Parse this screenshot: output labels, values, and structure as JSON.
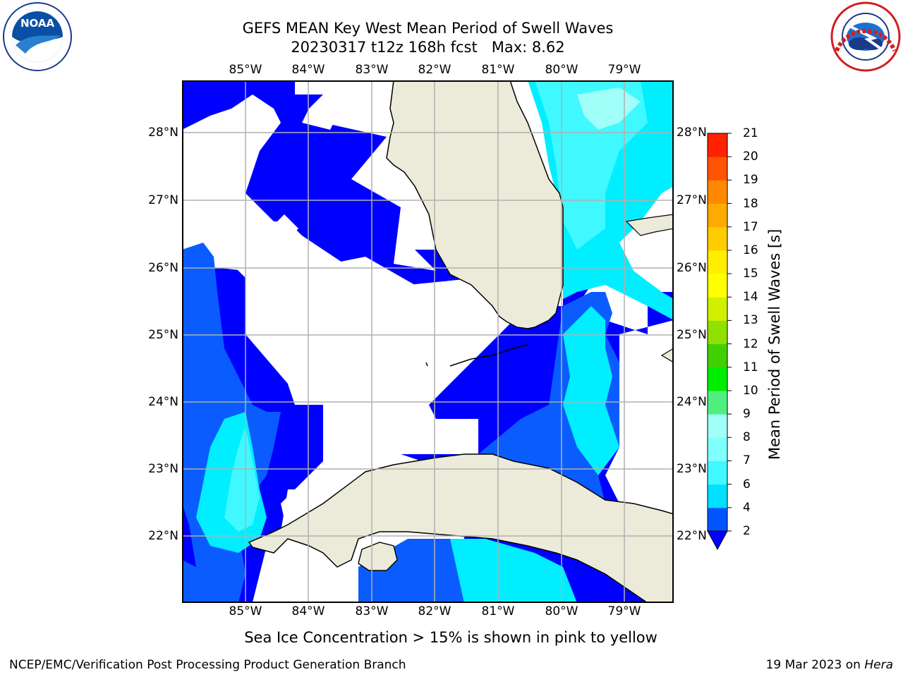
{
  "header": {
    "title_line1": "GEFS MEAN Key West Mean Period of Swell Waves",
    "title_line2": "20230317 t12z 168h fcst   Max: 8.62"
  },
  "logos": {
    "left_text": "NOAA",
    "left_ring_text": "NATIONAL OCEANIC AND ATMOSPHERIC ADMINISTRATION · U.S. DEPARTMENT OF COMMERCE",
    "right_ring_text": "NATIONAL WEATHER SERVICE"
  },
  "map": {
    "lon_labels": [
      "85°W",
      "84°W",
      "83°W",
      "82°W",
      "81°W",
      "80°W",
      "79°W"
    ],
    "lat_labels": [
      "28°N",
      "27°N",
      "26°N",
      "25°N",
      "24°N",
      "23°N",
      "22°N"
    ],
    "grid": true,
    "note": "Sea Ice Concentration > 15% is shown in pink to yellow"
  },
  "colorbar": {
    "title": "Mean Period of Swell Waves [s]",
    "levels": [
      "2",
      "4",
      "6",
      "7",
      "8",
      "9",
      "10",
      "11",
      "12",
      "13",
      "14",
      "15",
      "16",
      "17",
      "18",
      "19",
      "20",
      "21"
    ],
    "colors": [
      "#0055ff",
      "#00e0ff",
      "#40f8ff",
      "#80ffff",
      "#a0fff8",
      "#50f080",
      "#00ee00",
      "#40d000",
      "#90e000",
      "#d0f000",
      "#ffff00",
      "#ffee00",
      "#ffcc00",
      "#ffaa00",
      "#ff8800",
      "#ff5500",
      "#ff2200",
      "#ff0000"
    ],
    "under_color": "#0000ff"
  },
  "footer": {
    "left": "NCEP/EMC/Verification Post Processing Product Generation Branch",
    "right_prefix": "19 Mar 2023 on ",
    "right_italic": "Hera"
  }
}
